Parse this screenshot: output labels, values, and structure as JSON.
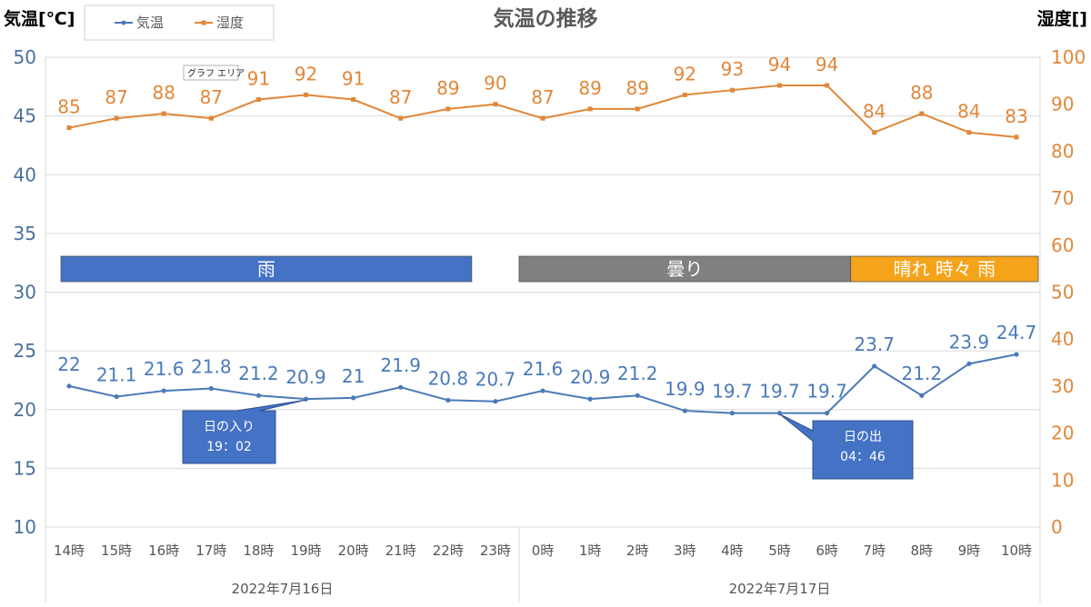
{
  "chart_data": {
    "type": "line",
    "title": "気温の推移",
    "y_left_label": "気温[℃]",
    "y_right_label": "湿度[]",
    "y_left_ticks": [
      "10",
      "15",
      "20",
      "25",
      "30",
      "35",
      "40",
      "45",
      "50"
    ],
    "y_right_ticks": [
      "0",
      "10",
      "20",
      "30",
      "40",
      "50",
      "60",
      "70",
      "80",
      "90",
      "100"
    ],
    "ylim_left": [
      10,
      50
    ],
    "ylim_right": [
      0,
      100
    ],
    "grid": true,
    "legend_position": "top-left",
    "categories": [
      "14時",
      "15時",
      "16時",
      "17時",
      "18時",
      "19時",
      "20時",
      "21時",
      "22時",
      "23時",
      "0時",
      "1時",
      "2時",
      "3時",
      "4時",
      "5時",
      "6時",
      "7時",
      "8時",
      "9時",
      "10時"
    ],
    "groups": [
      {
        "label": "2022年7月16日",
        "start": 0,
        "end": 9
      },
      {
        "label": "2022年7月17日",
        "start": 10,
        "end": 20
      }
    ],
    "series": [
      {
        "name": "気温",
        "axis": "left",
        "color": "#4a7ab8",
        "values": [
          22,
          21.1,
          21.6,
          21.8,
          21.2,
          20.9,
          21,
          21.9,
          20.8,
          20.7,
          21.6,
          20.9,
          21.2,
          19.9,
          19.7,
          19.7,
          19.7,
          23.7,
          21.2,
          23.9,
          24.7
        ]
      },
      {
        "name": "湿度",
        "axis": "right",
        "color": "#e0873a",
        "values": [
          85,
          87,
          88,
          87,
          91,
          92,
          91,
          87,
          89,
          90,
          87,
          89,
          89,
          92,
          93,
          94,
          94,
          84,
          88,
          84,
          83
        ]
      }
    ],
    "weather_bands": [
      {
        "label": "雨",
        "start": 0,
        "end": 9,
        "color": "#4472c4"
      },
      {
        "label": "曇り",
        "start": 10,
        "end": 17,
        "color": "#808080"
      },
      {
        "label": "晴れ 時々 雨",
        "start": 17,
        "end": 20,
        "color": "#f5a31a"
      }
    ],
    "annotations": [
      {
        "text_line1": "日の入り",
        "text_line2": "19：02",
        "at_category": 5,
        "series": "気温"
      },
      {
        "text_line1": "日の出",
        "text_line2": "04：46",
        "at_category": 15,
        "series": "気温"
      }
    ],
    "tooltip": "グラフ エリア"
  }
}
